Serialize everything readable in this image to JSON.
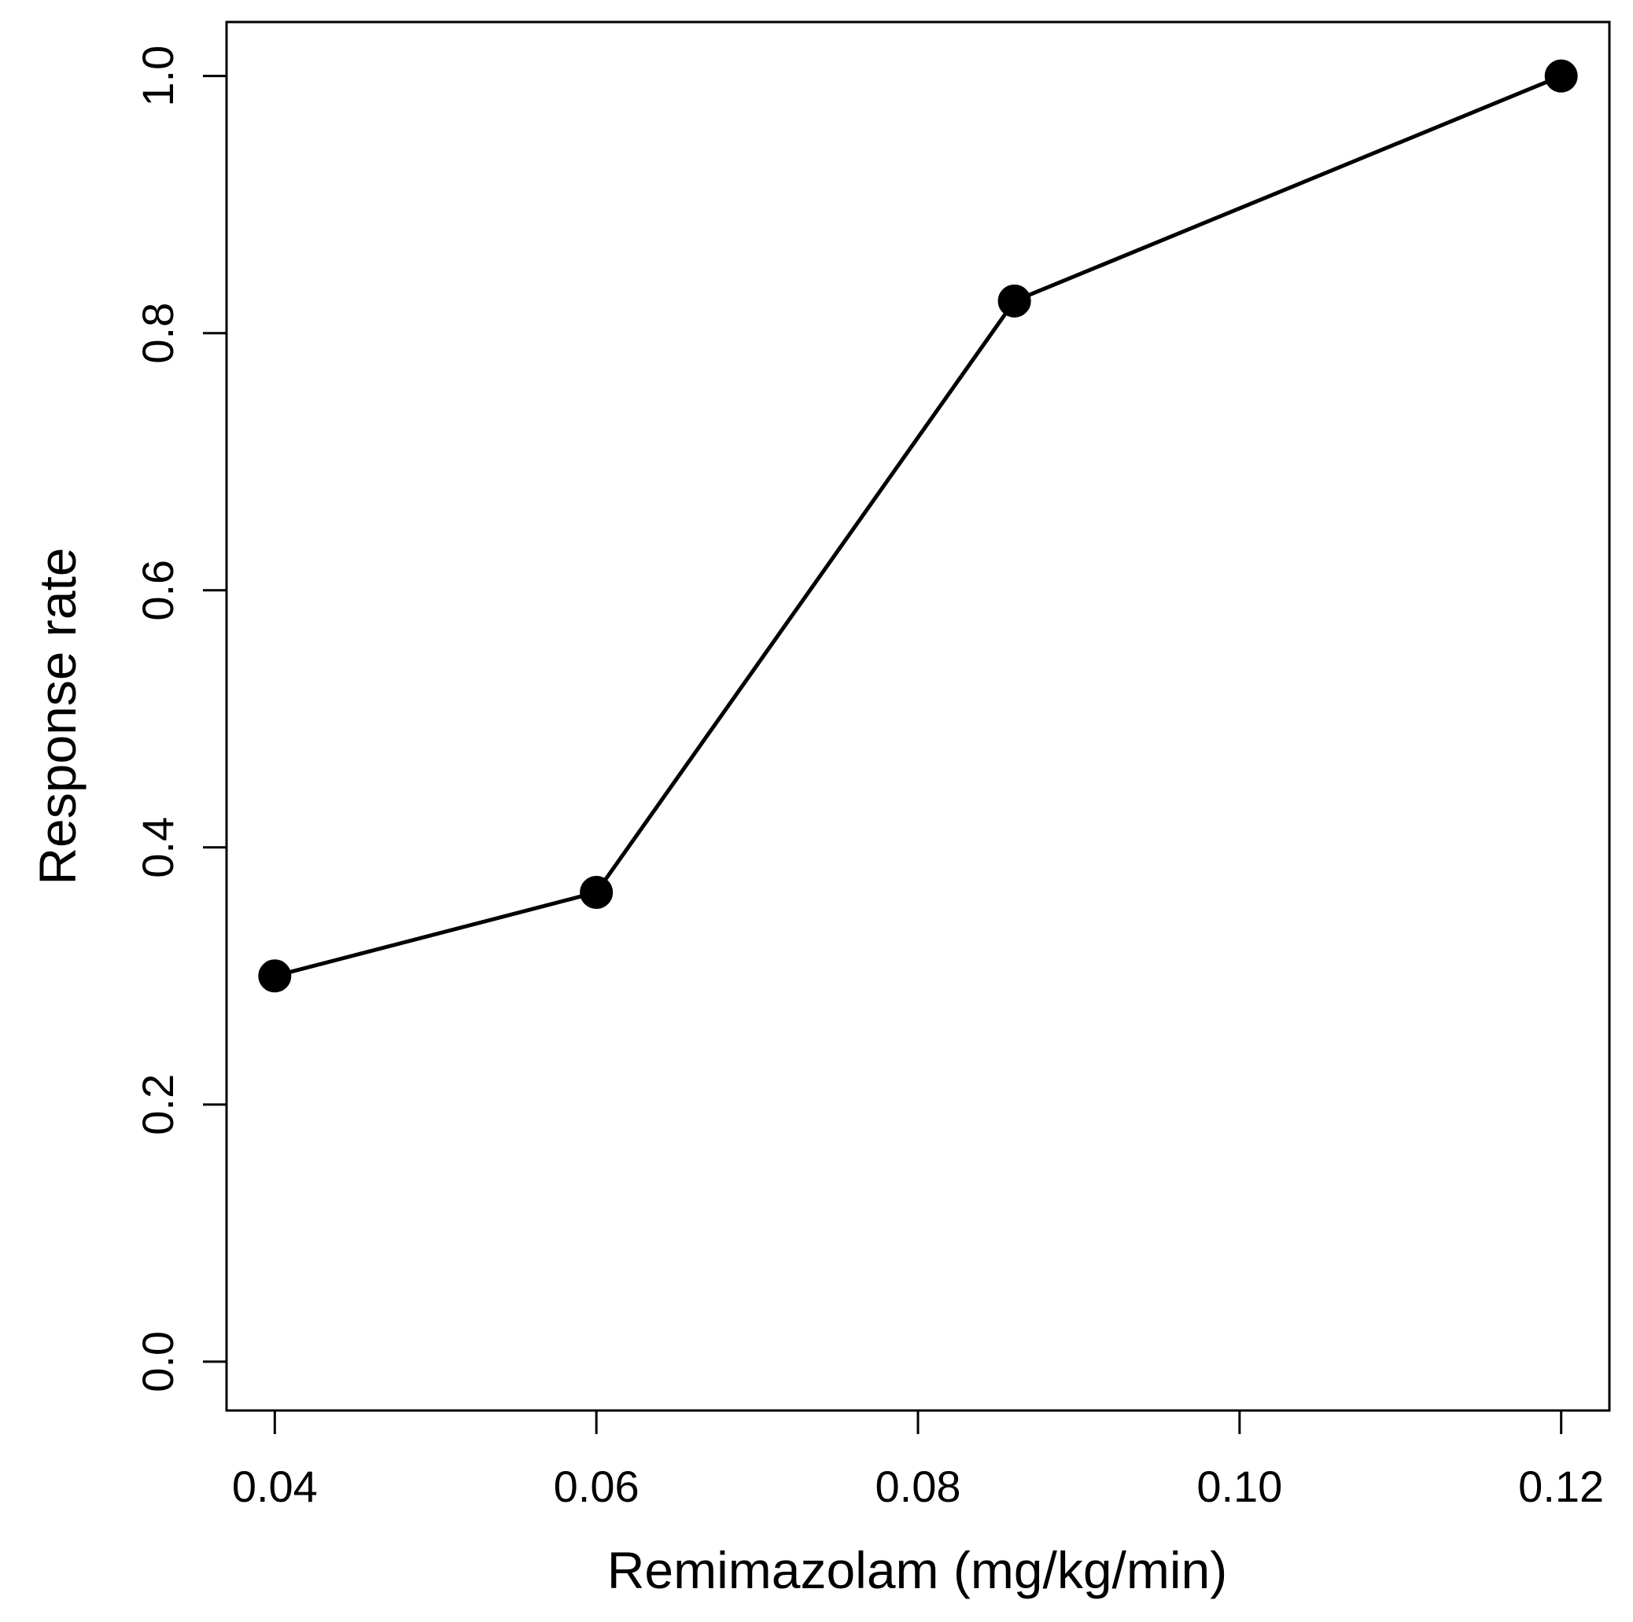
{
  "chart_data": {
    "type": "line",
    "title": "",
    "xlabel": "Remimazolam (mg/kg/min)",
    "ylabel": "Response rate",
    "x": [
      0.04,
      0.06,
      0.086,
      0.12
    ],
    "series": [
      {
        "name": "Response rate",
        "values": [
          0.3,
          0.365,
          0.825,
          1.0
        ]
      }
    ],
    "xlim": [
      0.037,
      0.123
    ],
    "ylim": [
      -0.038,
      1.042
    ],
    "xticks": [
      0.04,
      0.06,
      0.08,
      0.1,
      0.12
    ],
    "xtick_labels": [
      "0.04",
      "0.06",
      "0.08",
      "0.10",
      "0.12"
    ],
    "yticks": [
      0.0,
      0.2,
      0.4,
      0.6,
      0.8,
      1.0
    ],
    "ytick_labels": [
      "0.0",
      "0.2",
      "0.4",
      "0.6",
      "0.8",
      "1.0"
    ],
    "grid": false,
    "colors": {
      "line": "#000000",
      "marker": "#000000",
      "axis": "#000000",
      "background": "#ffffff"
    }
  }
}
